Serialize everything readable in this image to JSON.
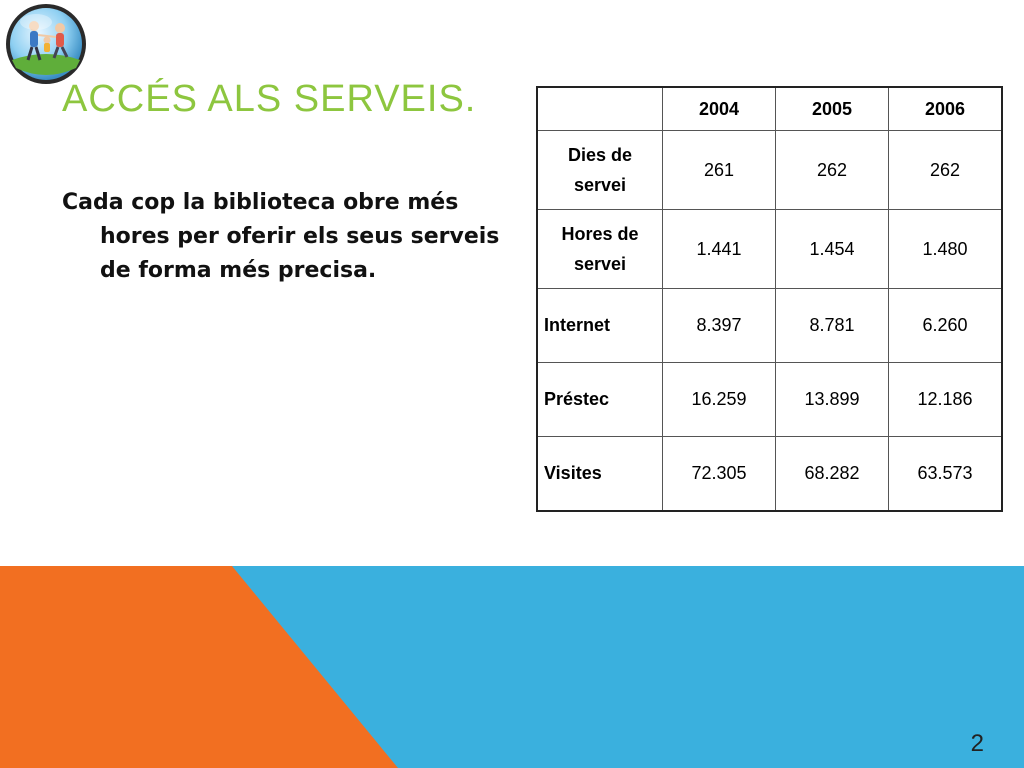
{
  "slide": {
    "title": "Accés als serveis.",
    "body": "Cada cop la biblioteca obre més hores per oferir els seus serveis de forma més precisa.",
    "page_number": "2"
  },
  "table": {
    "headers": [
      "",
      "2004",
      "2005",
      "2006"
    ],
    "rows": [
      {
        "label": "Dies de servei",
        "values": [
          "261",
          "262",
          "262"
        ]
      },
      {
        "label": "Hores de servei",
        "values": [
          "1.441",
          "1.454",
          "1.480"
        ]
      },
      {
        "label": "Internet",
        "values": [
          "8.397",
          "8.781",
          "6.260"
        ]
      },
      {
        "label": "Préstec",
        "values": [
          "16.259",
          "13.899",
          "12.186"
        ]
      },
      {
        "label": "Visites",
        "values": [
          "72.305",
          "68.282",
          "63.573"
        ]
      }
    ]
  },
  "colors": {
    "title": "#8dc63f",
    "band_orange": "#f26f21",
    "band_blue": "#3ab0de"
  },
  "icons": {
    "logo": "family-globe-icon"
  }
}
